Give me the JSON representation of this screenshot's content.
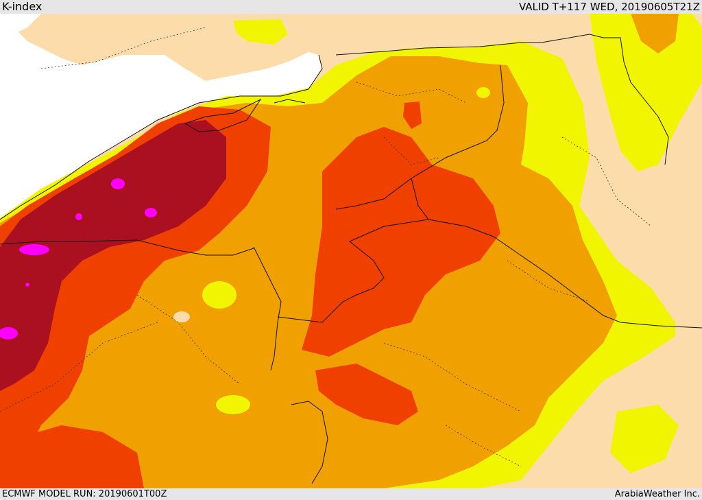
{
  "header": {
    "title": "K-index",
    "valid": "VALID T+117 WED, 20190605T21Z"
  },
  "footer": {
    "model_run": "ECMWF MODEL RUN: 20190601T00Z",
    "credit": "ArabiaWeather Inc."
  },
  "map": {
    "variable": "K-index",
    "palette": {
      "sea": "#ffffff",
      "land_low": "#fcdcaa",
      "yellow": "#f1f500",
      "orange_light": "#f0a000",
      "orange_dark": "#f04000",
      "crimson": "#aa1020",
      "magenta": "#ff00ff"
    }
  }
}
